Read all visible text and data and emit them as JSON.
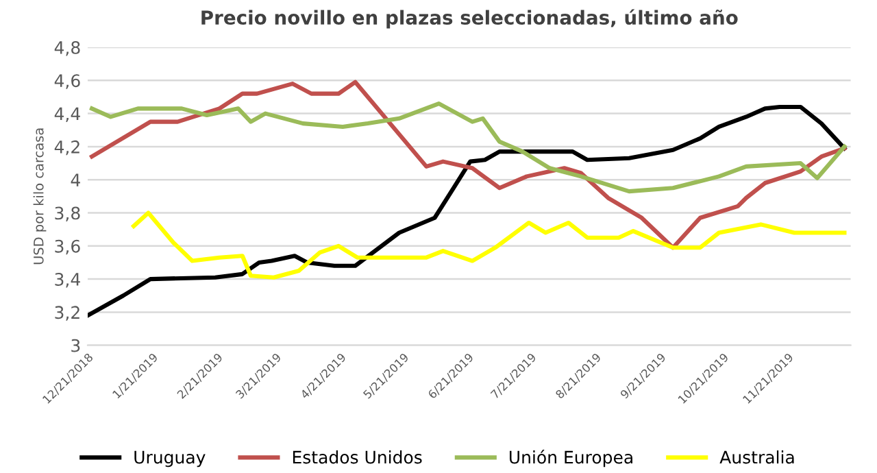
{
  "chart_data": {
    "type": "line",
    "title": "Precio novillo en plazas seleccionadas, último año",
    "ylabel": "USD por kilo carcasa",
    "xlim": [
      "2018-12-21",
      "2019-12-21"
    ],
    "xticks": [
      {
        "value": "2018-12-21",
        "label": "12/21/2018"
      },
      {
        "value": "2019-01-21",
        "label": "1/21/2019"
      },
      {
        "value": "2019-02-21",
        "label": "2/21/2019"
      },
      {
        "value": "2019-03-21",
        "label": "3/21/2019"
      },
      {
        "value": "2019-04-21",
        "label": "4/21/2019"
      },
      {
        "value": "2019-05-21",
        "label": "5/21/2019"
      },
      {
        "value": "2019-06-21",
        "label": "6/21/2019"
      },
      {
        "value": "2019-07-21",
        "label": "7/21/2019"
      },
      {
        "value": "2019-08-21",
        "label": "8/21/2019"
      },
      {
        "value": "2019-09-21",
        "label": "9/21/2019"
      },
      {
        "value": "2019-10-21",
        "label": "10/21/2019"
      },
      {
        "value": "2019-11-21",
        "label": "11/21/2019"
      }
    ],
    "ylim": [
      3,
      4.8
    ],
    "yticks": [
      3,
      {
        "value": 3.2,
        "label": "3,2"
      },
      {
        "value": 3.4,
        "label": "3,4"
      },
      {
        "value": 3.6,
        "label": "3,6"
      },
      {
        "value": 3.8,
        "label": "3,8"
      },
      4,
      {
        "value": 4.2,
        "label": "4,2"
      },
      {
        "value": 4.4,
        "label": "4,4"
      },
      {
        "value": 4.6,
        "label": "4,6"
      },
      {
        "value": 4.8,
        "label": "4,8"
      }
    ],
    "grid": "y",
    "legend": "bottom",
    "marker": "none",
    "line_style": "solid",
    "series": [
      {
        "name": "Uruguay",
        "color": "#000000",
        "x": [
          "2018-12-21",
          "2019-01-07",
          "2019-01-20",
          "2019-02-20",
          "2019-03-05",
          "2019-03-13",
          "2019-03-19",
          "2019-03-30",
          "2019-04-05",
          "2019-04-18",
          "2019-04-28",
          "2019-05-19",
          "2019-06-05",
          "2019-06-14",
          "2019-06-22",
          "2019-06-29",
          "2019-07-06",
          "2019-07-15",
          "2019-08-10",
          "2019-08-17",
          "2019-09-06",
          "2019-09-27",
          "2019-10-10",
          "2019-10-19",
          "2019-11-01",
          "2019-11-10",
          "2019-11-17",
          "2019-11-27",
          "2019-12-07",
          "2019-12-18"
        ],
        "values": [
          3.18,
          3.3,
          3.4,
          3.41,
          3.43,
          3.5,
          3.51,
          3.54,
          3.5,
          3.48,
          3.48,
          3.68,
          3.77,
          3.95,
          4.11,
          4.12,
          4.17,
          4.17,
          4.17,
          4.12,
          4.13,
          4.18,
          4.25,
          4.32,
          4.38,
          4.43,
          4.44,
          4.44,
          4.34,
          4.19
        ]
      },
      {
        "name": "Estados Unidos",
        "color": "#c0504d",
        "x": [
          "2018-12-23",
          "2019-01-20",
          "2019-02-02",
          "2019-02-22",
          "2019-03-05",
          "2019-03-12",
          "2019-03-29",
          "2019-04-07",
          "2019-04-20",
          "2019-04-28",
          "2019-06-01",
          "2019-06-09",
          "2019-06-23",
          "2019-07-06",
          "2019-07-19",
          "2019-08-06",
          "2019-08-14",
          "2019-08-27",
          "2019-09-12",
          "2019-09-27",
          "2019-10-10",
          "2019-10-28",
          "2019-11-01",
          "2019-11-10",
          "2019-11-27",
          "2019-12-07",
          "2019-12-18"
        ],
        "values": [
          4.14,
          4.35,
          4.35,
          4.43,
          4.52,
          4.52,
          4.58,
          4.52,
          4.52,
          4.59,
          4.08,
          4.11,
          4.07,
          3.95,
          4.02,
          4.07,
          4.04,
          3.89,
          3.77,
          3.59,
          3.77,
          3.84,
          3.89,
          3.98,
          4.05,
          4.14,
          4.19
        ]
      },
      {
        "name": "Unión Europea",
        "color": "#9bbb59",
        "x": [
          "2018-12-23",
          "2019-01-01",
          "2019-01-14",
          "2019-01-27",
          "2019-02-04",
          "2019-02-16",
          "2019-03-03",
          "2019-03-09",
          "2019-03-16",
          "2019-04-03",
          "2019-04-22",
          "2019-05-04",
          "2019-05-19",
          "2019-06-07",
          "2019-06-23",
          "2019-06-28",
          "2019-07-06",
          "2019-07-17",
          "2019-07-30",
          "2019-08-14",
          "2019-09-06",
          "2019-09-27",
          "2019-10-19",
          "2019-11-01",
          "2019-11-27",
          "2019-12-05",
          "2019-12-18"
        ],
        "values": [
          4.43,
          4.38,
          4.43,
          4.43,
          4.43,
          4.39,
          4.43,
          4.35,
          4.4,
          4.34,
          4.32,
          4.34,
          4.37,
          4.46,
          4.35,
          4.37,
          4.23,
          4.17,
          4.07,
          4.02,
          3.93,
          3.95,
          4.02,
          4.08,
          4.1,
          4.01,
          4.2
        ]
      },
      {
        "name": "Australia",
        "color": "#ffff00",
        "x": [
          "2019-01-12",
          "2019-01-19",
          "2019-01-31",
          "2019-02-09",
          "2019-02-22",
          "2019-03-05",
          "2019-03-09",
          "2019-03-20",
          "2019-04-01",
          "2019-04-11",
          "2019-04-20",
          "2019-04-29",
          "2019-05-10",
          "2019-06-01",
          "2019-06-09",
          "2019-06-23",
          "2019-07-04",
          "2019-07-20",
          "2019-07-28",
          "2019-08-08",
          "2019-08-17",
          "2019-09-01",
          "2019-09-08",
          "2019-09-27",
          "2019-10-10",
          "2019-10-19",
          "2019-11-08",
          "2019-11-24",
          "2019-12-18"
        ],
        "values": [
          3.72,
          3.8,
          3.62,
          3.51,
          3.53,
          3.54,
          3.42,
          3.41,
          3.45,
          3.56,
          3.6,
          3.53,
          3.53,
          3.53,
          3.57,
          3.51,
          3.59,
          3.74,
          3.68,
          3.74,
          3.65,
          3.65,
          3.69,
          3.59,
          3.59,
          3.68,
          3.73,
          3.68,
          3.68
        ]
      }
    ]
  }
}
